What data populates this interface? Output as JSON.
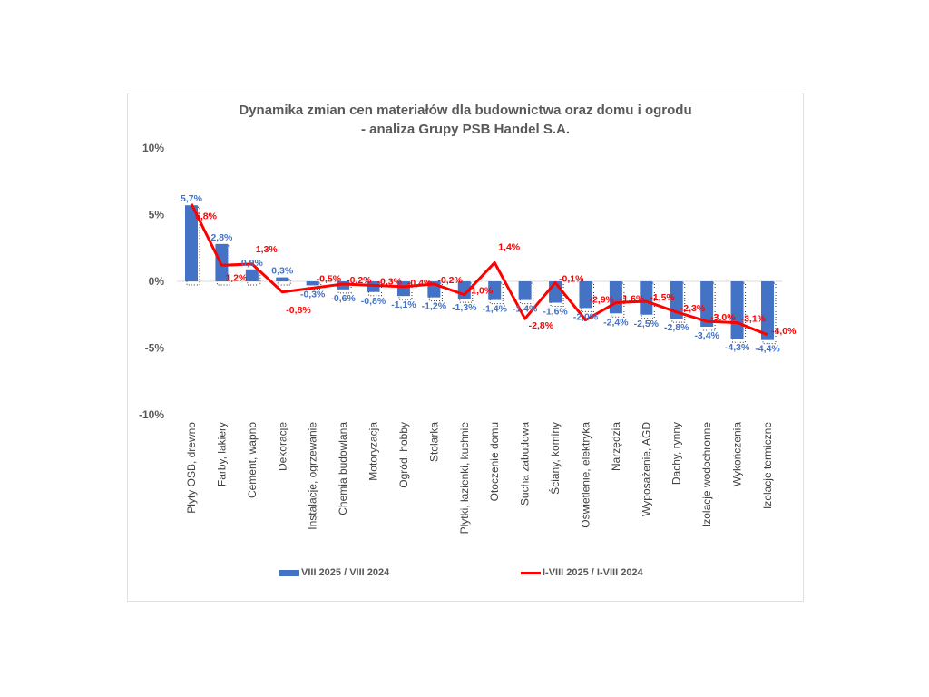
{
  "chart_data": {
    "type": "bar+line",
    "title": "Dynamika zmian cen materiałów dla budownictwa oraz domu i ogrodu",
    "subtitle": "- analiza Grupy PSB Handel S.A.",
    "categories": [
      "Płyty OSB, drewno",
      "Farby, lakiery",
      "Cement, wapno",
      "Dekoracje",
      "Instalacje, ogrzewanie",
      "Chemia budowlana",
      "Motoryzacja",
      "Ogród, hobby",
      "Stolarka",
      "Płytki, łazienki, kuchnie",
      "Otoczenie domu",
      "Sucha zabudowa",
      "Ściany, kominy",
      "Oświetlenie, elektryka",
      "Narzędzia",
      "Wyposażenie, AGD",
      "Dachy, rynny",
      "Izolacje wodochronne",
      "Wykończenia",
      "Izolacje termiczne"
    ],
    "series": [
      {
        "name": "VIII 2025 / VIII 2024",
        "type": "bar",
        "color": "#4472C4",
        "values": [
          5.7,
          2.8,
          0.9,
          0.3,
          -0.3,
          -0.6,
          -0.8,
          -1.1,
          -1.2,
          -1.3,
          -1.4,
          -1.4,
          -1.6,
          -2.0,
          -2.4,
          -2.5,
          -2.8,
          -3.4,
          -4.3,
          -4.4
        ]
      },
      {
        "name": "I-VIII 2025 / I-VIII 2024",
        "type": "line",
        "color": "#FF0000",
        "values": [
          5.8,
          1.2,
          1.3,
          -0.8,
          -0.5,
          -0.2,
          -0.3,
          -0.4,
          -0.2,
          -1.0,
          1.4,
          -2.8,
          -0.1,
          -2.9,
          -1.6,
          -1.5,
          -2.3,
          -3.0,
          -3.1,
          -4.0
        ]
      }
    ],
    "yticks": [
      "10%",
      "5%",
      "0%",
      "-5%",
      "-10%"
    ],
    "ylim": [
      -10,
      10
    ],
    "legend": "bottom",
    "grid": false
  }
}
